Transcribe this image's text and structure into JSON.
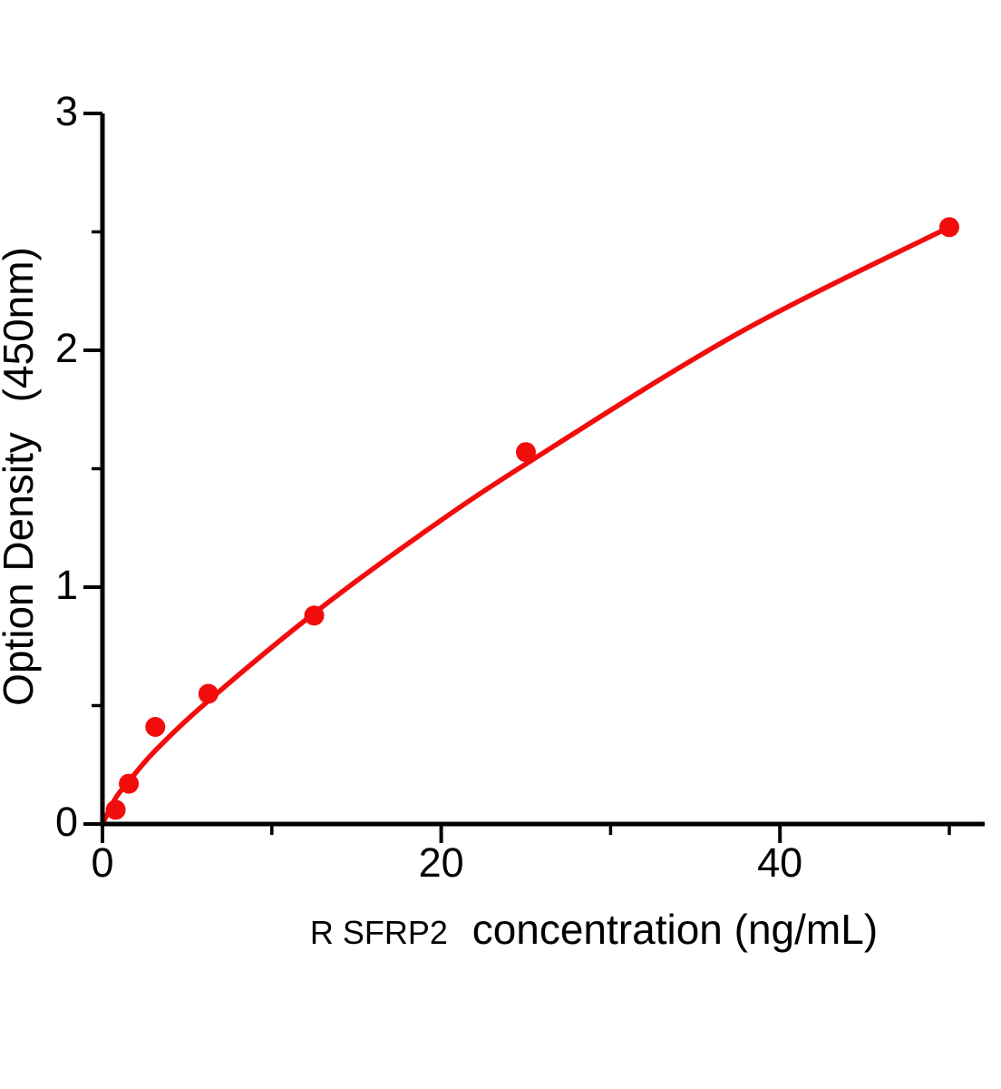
{
  "chart_data": {
    "type": "scatter",
    "title": "",
    "xlabel_prefix": "R SFRP2",
    "xlabel_main": "concentration (ng/mL)",
    "ylabel_part1": "Option Density",
    "ylabel_part2": "(450nm)",
    "xlim": [
      0,
      52
    ],
    "ylim": [
      0,
      3
    ],
    "x_ticks_major": [
      0,
      20,
      40
    ],
    "x_ticks_minor": [
      10,
      30,
      50
    ],
    "y_ticks_major": [
      0,
      1,
      2,
      3
    ],
    "y_ticks_minor": [
      0.5,
      1.5,
      2.5
    ],
    "grid": false,
    "legend": "none",
    "points": [
      {
        "x": 0.78,
        "y": 0.06
      },
      {
        "x": 1.56,
        "y": 0.17
      },
      {
        "x": 3.12,
        "y": 0.41
      },
      {
        "x": 6.25,
        "y": 0.55
      },
      {
        "x": 12.5,
        "y": 0.88
      },
      {
        "x": 25,
        "y": 1.57
      },
      {
        "x": 50,
        "y": 2.52
      }
    ],
    "fit_curve": [
      {
        "x": 0,
        "y": 0
      },
      {
        "x": 0.78,
        "y": 0.11
      },
      {
        "x": 1.56,
        "y": 0.18
      },
      {
        "x": 3.12,
        "y": 0.31
      },
      {
        "x": 6.25,
        "y": 0.52
      },
      {
        "x": 12.5,
        "y": 0.89
      },
      {
        "x": 18.75,
        "y": 1.22
      },
      {
        "x": 25,
        "y": 1.52
      },
      {
        "x": 37.5,
        "y": 2.07
      },
      {
        "x": 50,
        "y": 2.52
      }
    ],
    "colors": {
      "series": "#f20d0d",
      "axis": "#000000",
      "background": "#ffffff"
    },
    "marker_radius": 11
  }
}
